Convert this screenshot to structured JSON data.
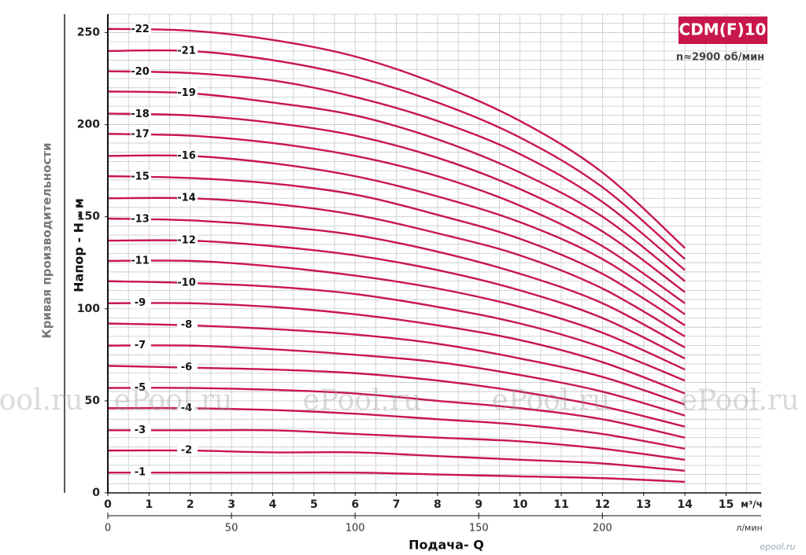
{
  "chart_data": {
    "type": "line",
    "title": "CDM(F)10",
    "subtitle": "n≈2900 об/мин",
    "ylabel": "Напор - H - м",
    "side_label": "Кривая производительности",
    "xlabel": "Подача- Q",
    "xunit": "м³/ч",
    "x2unit": "л/мин",
    "watermark": "ePool.ru",
    "logo": "epool.ru",
    "color": "#c8174a",
    "grid": true,
    "xminor": 0.5,
    "yminor": 5,
    "xlim": [
      0,
      15.85
    ],
    "xticks": [
      0,
      1,
      2,
      3,
      4,
      5,
      6,
      7,
      8,
      9,
      10,
      11,
      12,
      13,
      14,
      15
    ],
    "x2lim": [
      0,
      264.2
    ],
    "x2ticks": [
      0,
      50,
      100,
      150,
      200
    ],
    "ylim": [
      0,
      260
    ],
    "yticks": [
      0,
      50,
      100,
      150,
      200,
      250
    ],
    "x": [
      0,
      2,
      4,
      6,
      8,
      10,
      12,
      14
    ],
    "series": [
      {
        "name": "-1",
        "values": [
          11,
          11,
          11,
          11,
          10,
          9,
          8,
          6
        ]
      },
      {
        "name": "-2",
        "values": [
          23,
          23,
          22,
          22,
          20,
          18,
          16,
          12
        ]
      },
      {
        "name": "-3",
        "values": [
          34,
          34,
          34,
          32,
          30,
          28,
          24,
          18
        ]
      },
      {
        "name": "-4",
        "values": [
          46,
          46,
          45,
          43,
          40,
          37,
          32,
          24
        ]
      },
      {
        "name": "-5",
        "values": [
          57,
          57,
          56,
          54,
          50,
          46,
          40,
          30
        ]
      },
      {
        "name": "-6",
        "values": [
          69,
          68,
          67,
          65,
          61,
          55,
          47,
          36
        ]
      },
      {
        "name": "-7",
        "values": [
          80,
          80,
          78,
          75,
          71,
          64,
          55,
          42
        ]
      },
      {
        "name": "-8",
        "values": [
          92,
          91,
          89,
          86,
          81,
          73,
          63,
          48
        ]
      },
      {
        "name": "-9",
        "values": [
          103,
          103,
          101,
          97,
          91,
          83,
          71,
          54
        ]
      },
      {
        "name": "-10",
        "values": [
          115,
          114,
          112,
          108,
          101,
          92,
          79,
          61
        ]
      },
      {
        "name": "-11",
        "values": [
          126,
          126,
          123,
          118,
          111,
          101,
          87,
          67
        ]
      },
      {
        "name": "-12",
        "values": [
          137,
          137,
          134,
          129,
          121,
          110,
          95,
          73
        ]
      },
      {
        "name": "-13",
        "values": [
          149,
          148,
          145,
          140,
          131,
          119,
          103,
          79
        ]
      },
      {
        "name": "-14",
        "values": [
          160,
          160,
          157,
          151,
          141,
          129,
          111,
          85
        ]
      },
      {
        "name": "-15",
        "values": [
          172,
          171,
          168,
          162,
          151,
          138,
          119,
          91
        ]
      },
      {
        "name": "-16",
        "values": [
          183,
          183,
          179,
          172,
          161,
          147,
          127,
          97
        ]
      },
      {
        "name": "-17",
        "values": [
          195,
          194,
          190,
          183,
          172,
          156,
          134,
          103
        ]
      },
      {
        "name": "-18",
        "values": [
          206,
          205,
          201,
          194,
          182,
          165,
          142,
          109
        ]
      },
      {
        "name": "-19",
        "values": [
          218,
          217,
          212,
          205,
          192,
          174,
          150,
          115
        ]
      },
      {
        "name": "-20",
        "values": [
          229,
          228,
          224,
          215,
          202,
          184,
          158,
          121
        ]
      },
      {
        "name": "-21",
        "values": [
          240,
          240,
          235,
          226,
          212,
          193,
          166,
          127
        ]
      },
      {
        "name": "-22",
        "values": [
          252,
          251,
          246,
          237,
          222,
          202,
          174,
          133
        ]
      }
    ]
  }
}
